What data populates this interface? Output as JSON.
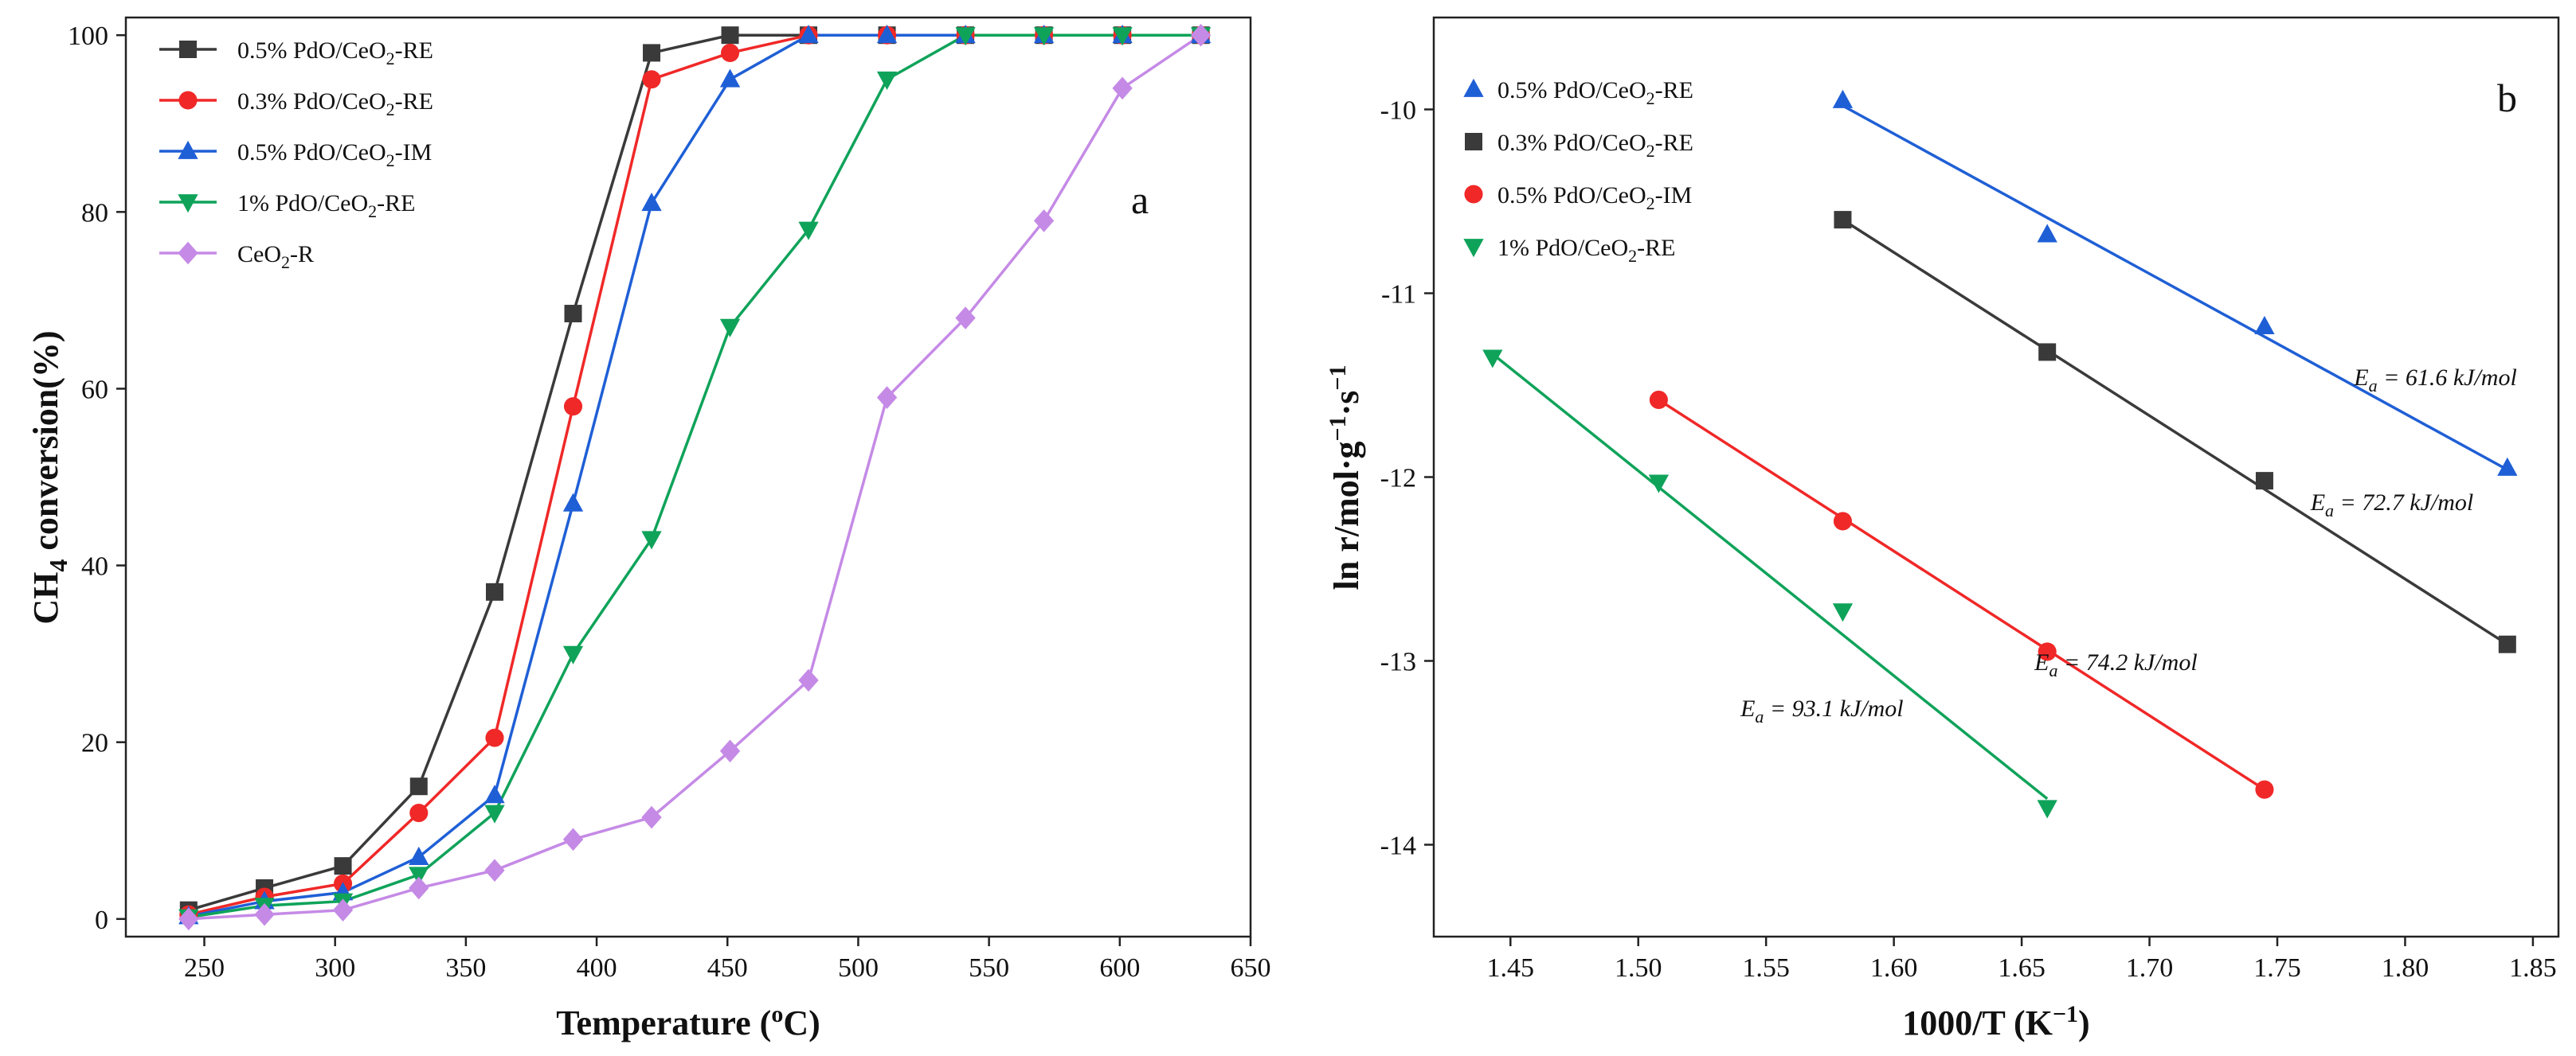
{
  "chart_data": [
    {
      "type": "line",
      "panel_label": "a",
      "xlabel_main": "Temperature (",
      "xlabel_sup": "o",
      "xlabel_end": "C)",
      "ylabel_main": "CH",
      "ylabel_sub": "4",
      "ylabel_end": " conversion(%)",
      "xlim": [
        220,
        650
      ],
      "ylim": [
        -2,
        102
      ],
      "xticks": [
        250,
        300,
        350,
        400,
        450,
        500,
        550,
        600,
        650
      ],
      "yticks": [
        0,
        20,
        40,
        60,
        80,
        100
      ],
      "x": [
        244,
        273,
        303,
        332,
        361,
        391,
        421,
        451,
        481,
        511,
        541,
        571,
        601,
        631
      ],
      "series": [
        {
          "name": "0.5% PdO/CeO2-RE",
          "legend": [
            "0.5% PdO/CeO",
            "2",
            "-RE"
          ],
          "color": "#3a3a3a",
          "marker": "square",
          "values": [
            1,
            3.5,
            6,
            15,
            37,
            68.5,
            98,
            100,
            100,
            100,
            100,
            100,
            100,
            100
          ]
        },
        {
          "name": "0.3% PdO/CeO2-RE",
          "legend": [
            "0.3% PdO/CeO",
            "2",
            "-RE"
          ],
          "color": "#f02828",
          "marker": "circle",
          "values": [
            0.5,
            2.5,
            4,
            12,
            20.5,
            58,
            95,
            98,
            100,
            100,
            100,
            100,
            100,
            100
          ]
        },
        {
          "name": "0.5% PdO/CeO2-IM",
          "legend": [
            "0.5% PdO/CeO",
            "2",
            "-IM"
          ],
          "color": "#1f5fd6",
          "marker": "triangle-up",
          "values": [
            0.3,
            2,
            3,
            7,
            14,
            47,
            81,
            95,
            100,
            100,
            100,
            100,
            100,
            100
          ]
        },
        {
          "name": "1% PdO/CeO2-RE",
          "legend": [
            "1% PdO/CeO",
            "2",
            "-RE"
          ],
          "color": "#0fa35a",
          "marker": "triangle-down",
          "values": [
            0.2,
            1.5,
            2,
            5,
            12,
            30,
            43,
            67,
            78,
            95,
            100,
            100,
            100,
            100
          ]
        },
        {
          "name": "CeO2-R",
          "legend": [
            "CeO",
            "2",
            "-R"
          ],
          "color": "#c58ae6",
          "marker": "diamond",
          "values": [
            0,
            0.5,
            1,
            3.5,
            5.5,
            9,
            11.5,
            19,
            27,
            59,
            68,
            79,
            94,
            100
          ]
        }
      ]
    },
    {
      "type": "scatter",
      "panel_label": "b",
      "xlabel_main": "1000/T (K",
      "xlabel_sup": "−1",
      "xlabel_end": ")",
      "ylabel_main": "ln r/mol·g",
      "ylabel_sup1": "−1",
      "ylabel_mid": "·s",
      "ylabel_sup2": "−1",
      "xlim": [
        1.42,
        1.86
      ],
      "ylim": [
        -14.5,
        -9.5
      ],
      "xticks": [
        "1.45",
        "1.50",
        "1.55",
        "1.60",
        "1.65",
        "1.70",
        "1.75",
        "1.80",
        "1.85"
      ],
      "yticks": [
        -10,
        -11,
        -12,
        -13,
        -14
      ],
      "series": [
        {
          "name": "0.5% PdO/CeO2-RE",
          "legend": [
            "0.5% PdO/CeO",
            "2",
            "-RE"
          ],
          "color": "#1f5fd6",
          "marker": "triangle-up",
          "x": [
            1.58,
            1.66,
            1.745,
            1.84
          ],
          "y": [
            -9.95,
            -10.68,
            -11.18,
            -11.95
          ],
          "fit_x": [
            1.58,
            1.84
          ],
          "fit_y": [
            -9.98,
            -11.96
          ],
          "ea_prefix": "E",
          "ea_sub": "a",
          "ea_text": " = 61.6 kJ/mol"
        },
        {
          "name": "0.3% PdO/CeO2-RE",
          "legend": [
            "0.3% PdO/CeO",
            "2",
            "-RE"
          ],
          "color": "#3a3a3a",
          "marker": "square",
          "x": [
            1.58,
            1.66,
            1.745,
            1.84
          ],
          "y": [
            -10.6,
            -11.32,
            -12.02,
            -12.91
          ],
          "fit_x": [
            1.58,
            1.84
          ],
          "fit_y": [
            -10.6,
            -12.91
          ],
          "ea_prefix": "E",
          "ea_sub": "a",
          "ea_text": " = 72.7 kJ/mol"
        },
        {
          "name": "0.5% PdO/CeO2-IM",
          "legend": [
            "0.5% PdO/CeO",
            "2",
            "-IM"
          ],
          "color": "#f02828",
          "marker": "circle",
          "x": [
            1.508,
            1.58,
            1.66,
            1.745
          ],
          "y": [
            -11.58,
            -12.24,
            -12.95,
            -13.7
          ],
          "fit_x": [
            1.508,
            1.745
          ],
          "fit_y": [
            -11.58,
            -13.7
          ],
          "ea_prefix": "E",
          "ea_sub": "a",
          "ea_text": " = 74.2 kJ/mol"
        },
        {
          "name": "1% PdO/CeO2-RE",
          "legend": [
            "1% PdO/CeO",
            "2",
            "-RE"
          ],
          "color": "#0fa35a",
          "marker": "triangle-down",
          "x": [
            1.443,
            1.508,
            1.58,
            1.66
          ],
          "y": [
            -11.35,
            -12.03,
            -12.73,
            -13.8
          ],
          "fit_x": [
            1.443,
            1.66
          ],
          "fit_y": [
            -11.33,
            -13.75
          ],
          "ea_prefix": "E",
          "ea_sub": "a",
          "ea_text": " = 93.1 kJ/mol"
        }
      ]
    }
  ]
}
